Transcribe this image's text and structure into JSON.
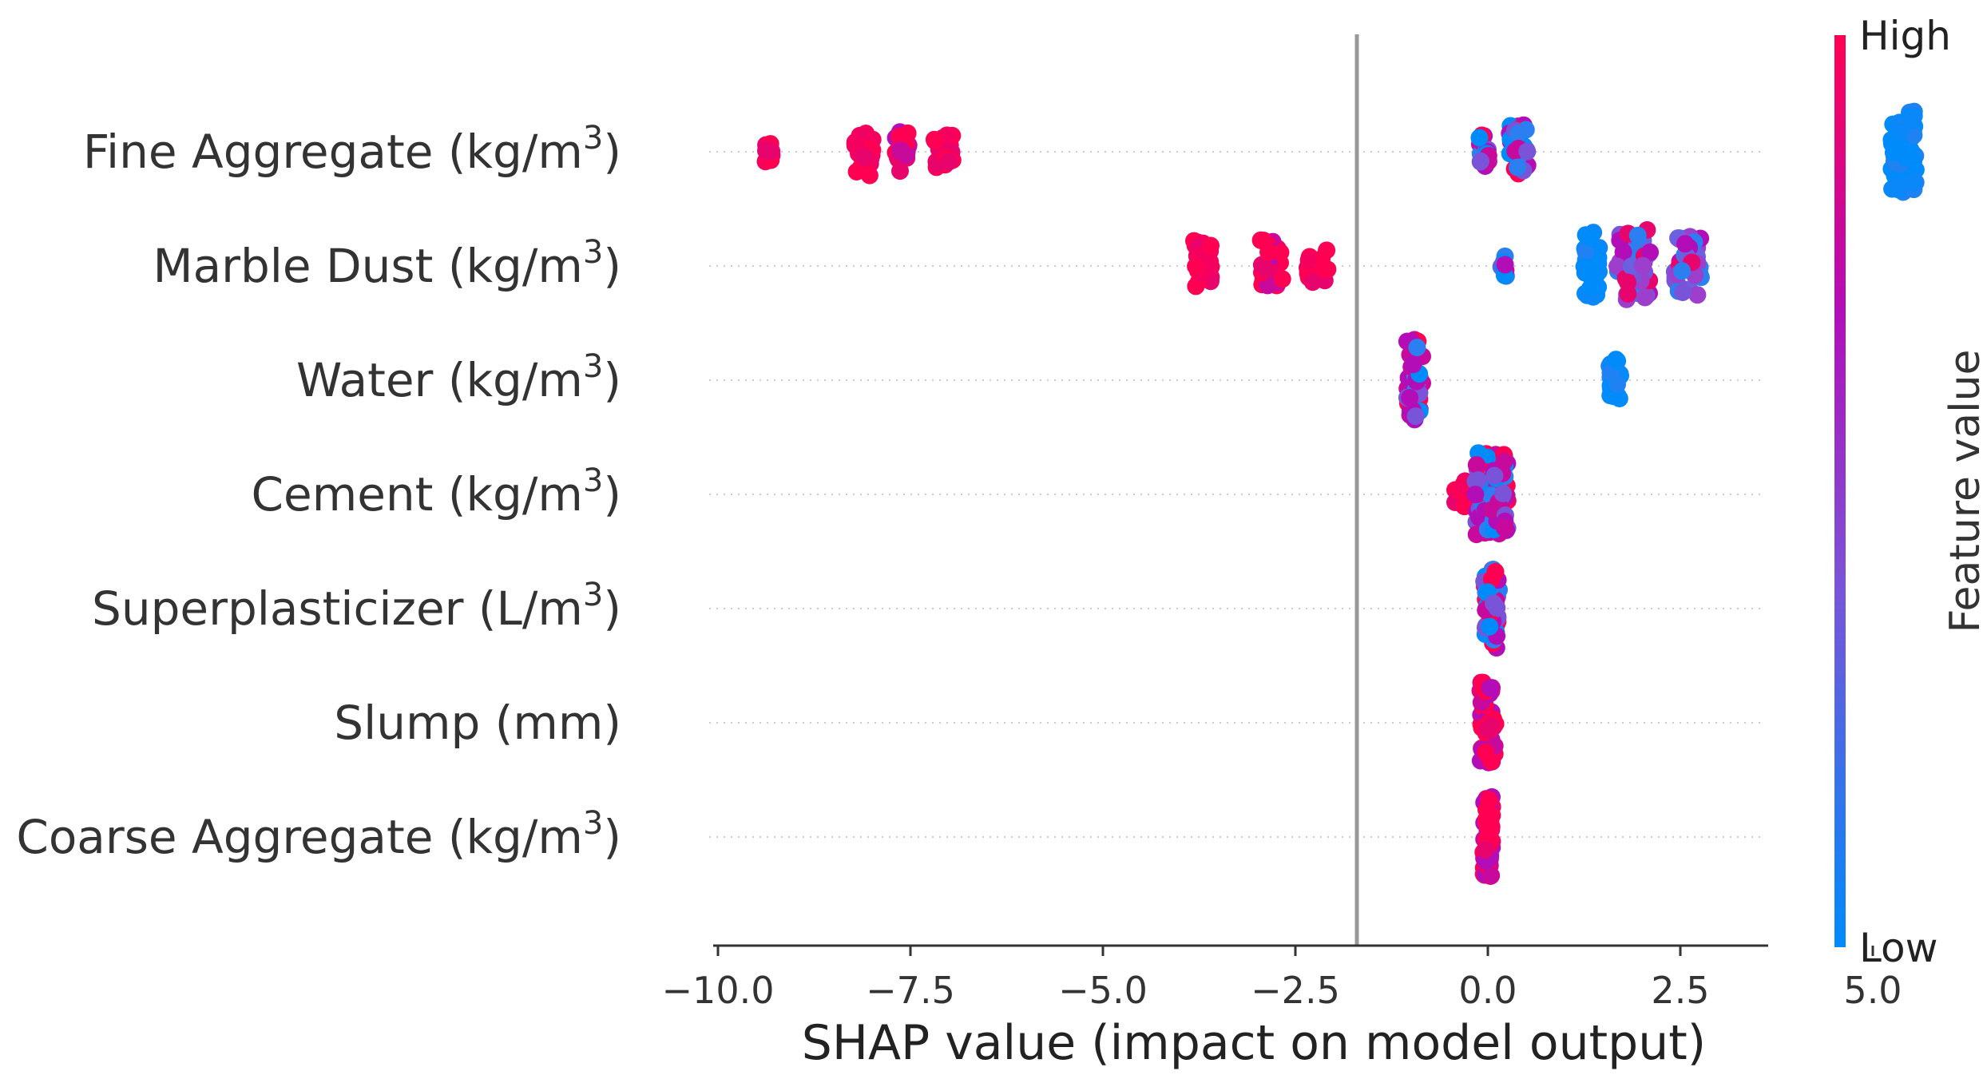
{
  "chart_data": {
    "type": "scatter",
    "subtype": "beeswarm",
    "xlabel": "SHAP value (impact on model output)",
    "xlim": [
      -10.1,
      6.4
    ],
    "xticks": [
      -10.0,
      -7.5,
      -5.0,
      -2.5,
      0.0,
      2.5,
      5.0
    ],
    "xtick_labels": [
      "−10.0",
      "−7.5",
      "−5.0",
      "−2.5",
      "0.0",
      "2.5",
      "5.0"
    ],
    "grid": false,
    "features": [
      {
        "label": "Fine Aggregate (kg/m",
        "sup": "3",
        "label_end": ")",
        "clusters": [
          {
            "x": -9.35,
            "spread": 0.05,
            "count": 14,
            "color": "high"
          },
          {
            "x": -8.1,
            "spread": 0.12,
            "count": 30,
            "color": "high"
          },
          {
            "x": -7.6,
            "spread": 0.12,
            "count": 24,
            "color": "high-mixed"
          },
          {
            "x": -7.1,
            "spread": 0.15,
            "count": 20,
            "color": "high"
          },
          {
            "x": -0.05,
            "spread": 0.06,
            "count": 22,
            "color": "mixed"
          },
          {
            "x": 0.4,
            "spread": 0.12,
            "count": 36,
            "color": "mixed"
          },
          {
            "x": 5.4,
            "spread": 0.16,
            "count": 70,
            "color": "low"
          }
        ]
      },
      {
        "label": "Marble Dust (kg/m",
        "sup": "3",
        "label_end": ")",
        "clusters": [
          {
            "x": -3.7,
            "spread": 0.12,
            "count": 32,
            "color": "high"
          },
          {
            "x": -2.8,
            "spread": 0.15,
            "count": 34,
            "color": "high-mixed"
          },
          {
            "x": -2.2,
            "spread": 0.15,
            "count": 18,
            "color": "high"
          },
          {
            "x": 0.2,
            "spread": 0.04,
            "count": 10,
            "color": "mixed"
          },
          {
            "x": 1.35,
            "spread": 0.1,
            "count": 46,
            "color": "low"
          },
          {
            "x": 1.9,
            "spread": 0.22,
            "count": 50,
            "color": "mid"
          },
          {
            "x": 2.6,
            "spread": 0.18,
            "count": 40,
            "color": "mid"
          }
        ]
      },
      {
        "label": "Water (kg/m",
        "sup": "3",
        "label_end": ")",
        "clusters": [
          {
            "x": -0.95,
            "spread": 0.1,
            "count": 56,
            "color": "mixed"
          },
          {
            "x": 1.65,
            "spread": 0.08,
            "count": 26,
            "color": "low"
          }
        ]
      },
      {
        "label": "Cement  (kg/m",
        "sup": "3",
        "label_end": ")",
        "clusters": [
          {
            "x": -0.35,
            "spread": 0.1,
            "count": 14,
            "color": "high"
          },
          {
            "x": 0.05,
            "spread": 0.22,
            "count": 80,
            "color": "mixed"
          }
        ]
      },
      {
        "label": "Superplasticizer  (L/m",
        "sup": "3",
        "label_end": ")",
        "clusters": [
          {
            "x": 0.05,
            "spread": 0.1,
            "count": 56,
            "color": "mixed"
          }
        ]
      },
      {
        "label": "Slump (mm)",
        "sup": "",
        "label_end": "",
        "clusters": [
          {
            "x": 0.0,
            "spread": 0.1,
            "count": 56,
            "color": "high-mixed"
          }
        ]
      },
      {
        "label": "Coarse Aggregate (kg/m",
        "sup": "3",
        "label_end": ")",
        "clusters": [
          {
            "x": 0.0,
            "spread": 0.06,
            "count": 60,
            "color": "high-mixed"
          }
        ]
      }
    ],
    "colorbar": {
      "label": "Feature value",
      "high_label": "High",
      "low_label": "Low",
      "colors": [
        "#008bfb",
        "#7a54d8",
        "#b30db8",
        "#ff0052"
      ]
    }
  }
}
